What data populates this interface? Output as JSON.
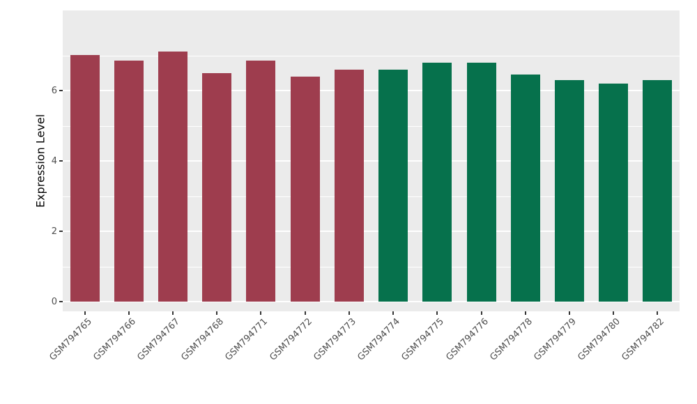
{
  "chart_data": {
    "type": "bar",
    "title": "",
    "xlabel": "",
    "ylabel": "Expression Level",
    "categories": [
      "GSM794765",
      "GSM794766",
      "GSM794767",
      "GSM794768",
      "GSM794771",
      "GSM794772",
      "GSM794773",
      "GSM794774",
      "GSM794775",
      "GSM794776",
      "GSM794778",
      "GSM794779",
      "GSM794780",
      "GSM794782"
    ],
    "values": [
      7.0,
      6.85,
      7.1,
      6.5,
      6.85,
      6.4,
      6.6,
      6.6,
      6.8,
      6.8,
      6.45,
      6.3,
      6.2,
      6.3
    ],
    "bar_colors": [
      "#9E3D4E",
      "#9E3D4E",
      "#9E3D4E",
      "#9E3D4E",
      "#9E3D4E",
      "#9E3D4E",
      "#9E3D4E",
      "#06714C",
      "#06714C",
      "#06714C",
      "#06714C",
      "#06714C",
      "#06714C",
      "#06714C"
    ],
    "group_colors": {
      "left_group": "#9E3D4E",
      "right_group": "#06714C"
    },
    "ylim": [
      0,
      7.5
    ],
    "yticks": [
      0,
      2,
      4,
      6
    ],
    "yticks_minor": [
      1,
      3,
      5,
      7
    ],
    "grid": true,
    "legend": "none",
    "panel_bg": "#EBEBEB",
    "grid_color": "#FFFFFF",
    "tick_label_color": "#4D4D4D",
    "axis_title_color": "#000000"
  }
}
